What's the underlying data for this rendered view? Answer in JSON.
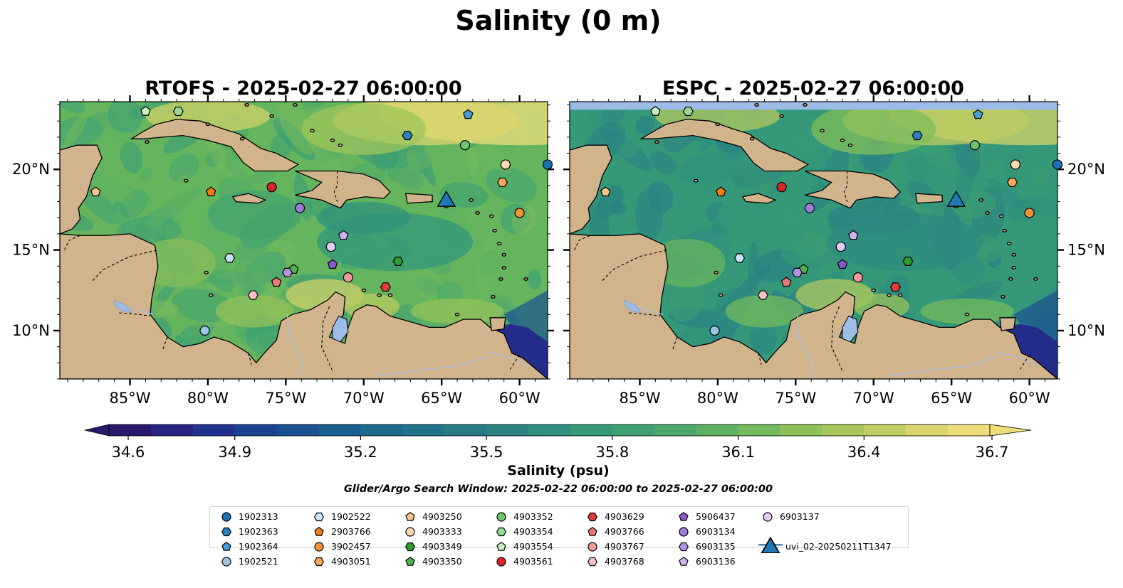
{
  "figure": {
    "title": "Salinity (0 m)",
    "search_window": "Glider/Argo Search Window: 2025-02-22 06:00:00 to 2025-02-27 06:00:00"
  },
  "panels": [
    {
      "id": "rtofs",
      "title": "RTOFS - 2025-02-27 06:00:00"
    },
    {
      "id": "espc",
      "title": "ESPC - 2025-02-27 06:00:00"
    }
  ],
  "map": {
    "lon_range": [
      -89.5,
      -58.2
    ],
    "lat_range": [
      7.0,
      24.2
    ],
    "lon_ticks": [
      "85°W",
      "80°W",
      "75°W",
      "70°W",
      "65°W",
      "60°W"
    ],
    "lat_ticks": [
      "20°N",
      "15°N",
      "10°N"
    ],
    "colors": {
      "land": "#d2b48c",
      "lake": "#9dbde6",
      "coast": "#000000"
    }
  },
  "colorbar": {
    "label": "Salinity (psu)",
    "range": [
      34.6,
      36.7
    ],
    "ticks": [
      "34.6",
      "34.9",
      "35.2",
      "35.5",
      "35.8",
      "36.1",
      "36.4",
      "36.7"
    ],
    "colormap": "haline",
    "extend": "both"
  },
  "platforms": [
    {
      "id": "1902313",
      "marker": "circle",
      "color": "#1f6fb4",
      "lon": -58.2,
      "lat": 20.3
    },
    {
      "id": "1902363",
      "marker": "hexagon",
      "color": "#2e7fc0",
      "lon": -67.2,
      "lat": 22.1
    },
    {
      "id": "1902364",
      "marker": "pentagon",
      "color": "#4b9bd6",
      "lon": -63.3,
      "lat": 23.4
    },
    {
      "id": "1902521",
      "marker": "circle",
      "color": "#9bc4e6",
      "lon": -80.2,
      "lat": 10.0
    },
    {
      "id": "1902522",
      "marker": "hexagon",
      "color": "#c7e3f6",
      "lon": -78.6,
      "lat": 14.5
    },
    {
      "id": "2903766",
      "marker": "pentagon",
      "color": "#f07d12",
      "lon": -79.8,
      "lat": 18.6
    },
    {
      "id": "3902457",
      "marker": "circle",
      "color": "#f4923a",
      "lon": -60.0,
      "lat": 17.3
    },
    {
      "id": "4903051",
      "marker": "hexagon",
      "color": "#f7a75b",
      "lon": -61.1,
      "lat": 19.2
    },
    {
      "id": "4903250",
      "marker": "pentagon",
      "color": "#f8c38a",
      "lon": -87.2,
      "lat": 18.6
    },
    {
      "id": "4903333",
      "marker": "circle",
      "color": "#fbd9b3",
      "lon": -60.9,
      "lat": 20.3
    },
    {
      "id": "4903349",
      "marker": "hexagon",
      "color": "#2e9b2e",
      "lon": -67.8,
      "lat": 14.3
    },
    {
      "id": "4903350",
      "marker": "pentagon",
      "color": "#4db34d",
      "lon": -74.5,
      "lat": 13.8
    },
    {
      "id": "4903352",
      "marker": "circle",
      "color": "#6dc46d",
      "lon": -63.5,
      "lat": 21.5
    },
    {
      "id": "4903354",
      "marker": "hexagon",
      "color": "#96d996",
      "lon": -81.9,
      "lat": 23.6
    },
    {
      "id": "4903554",
      "marker": "pentagon",
      "color": "#c8f0c0",
      "lon": -84.0,
      "lat": 23.6
    },
    {
      "id": "4903561",
      "marker": "circle",
      "color": "#d62828",
      "lon": -75.9,
      "lat": 18.9
    },
    {
      "id": "4903629",
      "marker": "hexagon",
      "color": "#e03a3a",
      "lon": -68.6,
      "lat": 12.7
    },
    {
      "id": "4903766",
      "marker": "pentagon",
      "color": "#ec7777",
      "lon": -75.6,
      "lat": 13.0
    },
    {
      "id": "4903767",
      "marker": "circle",
      "color": "#f39a9a",
      "lon": -71.0,
      "lat": 13.3
    },
    {
      "id": "4903768",
      "marker": "hexagon",
      "color": "#f7c2c2",
      "lon": -77.1,
      "lat": 12.2
    },
    {
      "id": "5906437",
      "marker": "pentagon",
      "color": "#8a56c8",
      "lon": -72.0,
      "lat": 14.1
    },
    {
      "id": "6903134",
      "marker": "circle",
      "color": "#9f7ad6",
      "lon": -74.1,
      "lat": 17.6
    },
    {
      "id": "6903135",
      "marker": "hexagon",
      "color": "#b394e0",
      "lon": -74.9,
      "lat": 13.6
    },
    {
      "id": "6903136",
      "marker": "pentagon",
      "color": "#cfb3ee",
      "lon": -71.3,
      "lat": 15.9
    },
    {
      "id": "6903137",
      "marker": "circle",
      "color": "#e3ccf5",
      "lon": -72.1,
      "lat": 15.2
    },
    {
      "id": "uvi_02-20250211T1347",
      "marker": "triangle",
      "color": "#1f77b4",
      "lon": -64.7,
      "lat": 18.2
    }
  ]
}
